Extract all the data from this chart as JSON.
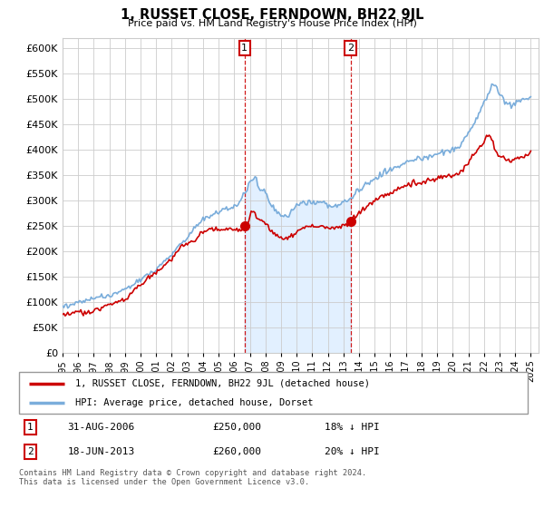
{
  "title": "1, RUSSET CLOSE, FERNDOWN, BH22 9JL",
  "subtitle": "Price paid vs. HM Land Registry's House Price Index (HPI)",
  "ylim": [
    0,
    620000
  ],
  "xlim_start": 1995.0,
  "xlim_end": 2025.5,
  "purchase1_date": 2006.667,
  "purchase1_price": 250000,
  "purchase2_date": 2013.458,
  "purchase2_price": 260000,
  "legend_line1": "1, RUSSET CLOSE, FERNDOWN, BH22 9JL (detached house)",
  "legend_line2": "HPI: Average price, detached house, Dorset",
  "table_row1": [
    "1",
    "31-AUG-2006",
    "£250,000",
    "18% ↓ HPI"
  ],
  "table_row2": [
    "2",
    "18-JUN-2013",
    "£260,000",
    "20% ↓ HPI"
  ],
  "footer": "Contains HM Land Registry data © Crown copyright and database right 2024.\nThis data is licensed under the Open Government Licence v3.0.",
  "red_color": "#cc0000",
  "blue_color": "#7aaddb",
  "blue_fill": "#ddeeff",
  "grid_color": "#cccccc",
  "background_color": "#ffffff",
  "hpi_years": [
    1995.0,
    1995.083,
    1995.167,
    1995.25,
    1995.333,
    1995.417,
    1995.5,
    1995.583,
    1995.667,
    1995.75,
    1995.833,
    1995.917,
    1996.0,
    1996.083,
    1996.167,
    1996.25,
    1996.333,
    1996.417,
    1996.5,
    1996.583,
    1996.667,
    1996.75,
    1996.833,
    1996.917,
    1997.0,
    1997.083,
    1997.167,
    1997.25,
    1997.333,
    1997.417,
    1997.5,
    1997.583,
    1997.667,
    1997.75,
    1997.833,
    1997.917,
    1998.0,
    1998.083,
    1998.167,
    1998.25,
    1998.333,
    1998.417,
    1998.5,
    1998.583,
    1998.667,
    1998.75,
    1998.833,
    1998.917,
    1999.0,
    1999.083,
    1999.167,
    1999.25,
    1999.333,
    1999.417,
    1999.5,
    1999.583,
    1999.667,
    1999.75,
    1999.833,
    1999.917,
    2000.0,
    2000.083,
    2000.167,
    2000.25,
    2000.333,
    2000.417,
    2000.5,
    2000.583,
    2000.667,
    2000.75,
    2000.833,
    2000.917,
    2001.0,
    2001.083,
    2001.167,
    2001.25,
    2001.333,
    2001.417,
    2001.5,
    2001.583,
    2001.667,
    2001.75,
    2001.833,
    2001.917,
    2002.0,
    2002.083,
    2002.167,
    2002.25,
    2002.333,
    2002.417,
    2002.5,
    2002.583,
    2002.667,
    2002.75,
    2002.833,
    2002.917,
    2003.0,
    2003.083,
    2003.167,
    2003.25,
    2003.333,
    2003.417,
    2003.5,
    2003.583,
    2003.667,
    2003.75,
    2003.833,
    2003.917,
    2004.0,
    2004.083,
    2004.167,
    2004.25,
    2004.333,
    2004.417,
    2004.5,
    2004.583,
    2004.667,
    2004.75,
    2004.833,
    2004.917,
    2005.0,
    2005.083,
    2005.167,
    2005.25,
    2005.333,
    2005.417,
    2005.5,
    2005.583,
    2005.667,
    2005.75,
    2005.833,
    2005.917,
    2006.0,
    2006.083,
    2006.167,
    2006.25,
    2006.333,
    2006.417,
    2006.5,
    2006.583,
    2006.667,
    2006.75,
    2006.833,
    2006.917,
    2007.0,
    2007.083,
    2007.167,
    2007.25,
    2007.333,
    2007.417,
    2007.5,
    2007.583,
    2007.667,
    2007.75,
    2007.833,
    2007.917,
    2008.0,
    2008.083,
    2008.167,
    2008.25,
    2008.333,
    2008.417,
    2008.5,
    2008.583,
    2008.667,
    2008.75,
    2008.833,
    2008.917,
    2009.0,
    2009.083,
    2009.167,
    2009.25,
    2009.333,
    2009.417,
    2009.5,
    2009.583,
    2009.667,
    2009.75,
    2009.833,
    2009.917,
    2010.0,
    2010.083,
    2010.167,
    2010.25,
    2010.333,
    2010.417,
    2010.5,
    2010.583,
    2010.667,
    2010.75,
    2010.833,
    2010.917,
    2011.0,
    2011.083,
    2011.167,
    2011.25,
    2011.333,
    2011.417,
    2011.5,
    2011.583,
    2011.667,
    2011.75,
    2011.833,
    2011.917,
    2012.0,
    2012.083,
    2012.167,
    2012.25,
    2012.333,
    2012.417,
    2012.5,
    2012.583,
    2012.667,
    2012.75,
    2012.833,
    2012.917,
    2013.0,
    2013.083,
    2013.167,
    2013.25,
    2013.333,
    2013.417,
    2013.5,
    2013.583,
    2013.667,
    2013.75,
    2013.833,
    2013.917,
    2014.0,
    2014.083,
    2014.167,
    2014.25,
    2014.333,
    2014.417,
    2014.5,
    2014.583,
    2014.667,
    2014.75,
    2014.833,
    2014.917,
    2015.0,
    2015.083,
    2015.167,
    2015.25,
    2015.333,
    2015.417,
    2015.5,
    2015.583,
    2015.667,
    2015.75,
    2015.833,
    2015.917,
    2016.0,
    2016.083,
    2016.167,
    2016.25,
    2016.333,
    2016.417,
    2016.5,
    2016.583,
    2016.667,
    2016.75,
    2016.833,
    2016.917,
    2017.0,
    2017.083,
    2017.167,
    2017.25,
    2017.333,
    2017.417,
    2017.5,
    2017.583,
    2017.667,
    2017.75,
    2017.833,
    2017.917,
    2018.0,
    2018.083,
    2018.167,
    2018.25,
    2018.333,
    2018.417,
    2018.5,
    2018.583,
    2018.667,
    2018.75,
    2018.833,
    2018.917,
    2019.0,
    2019.083,
    2019.167,
    2019.25,
    2019.333,
    2019.417,
    2019.5,
    2019.583,
    2019.667,
    2019.75,
    2019.833,
    2019.917,
    2020.0,
    2020.083,
    2020.167,
    2020.25,
    2020.333,
    2020.417,
    2020.5,
    2020.583,
    2020.667,
    2020.75,
    2020.833,
    2020.917,
    2021.0,
    2021.083,
    2021.167,
    2021.25,
    2021.333,
    2021.417,
    2021.5,
    2021.583,
    2021.667,
    2021.75,
    2021.833,
    2021.917,
    2022.0,
    2022.083,
    2022.167,
    2022.25,
    2022.333,
    2022.417,
    2022.5,
    2022.583,
    2022.667,
    2022.75,
    2022.833,
    2022.917,
    2023.0,
    2023.083,
    2023.167,
    2023.25,
    2023.333,
    2023.417,
    2023.5,
    2023.583,
    2023.667,
    2023.75,
    2023.833,
    2023.917,
    2024.0,
    2024.083,
    2024.167,
    2024.25,
    2024.333,
    2024.417,
    2024.5,
    2024.583,
    2024.667,
    2024.75,
    2024.833,
    2024.917,
    2025.0
  ]
}
